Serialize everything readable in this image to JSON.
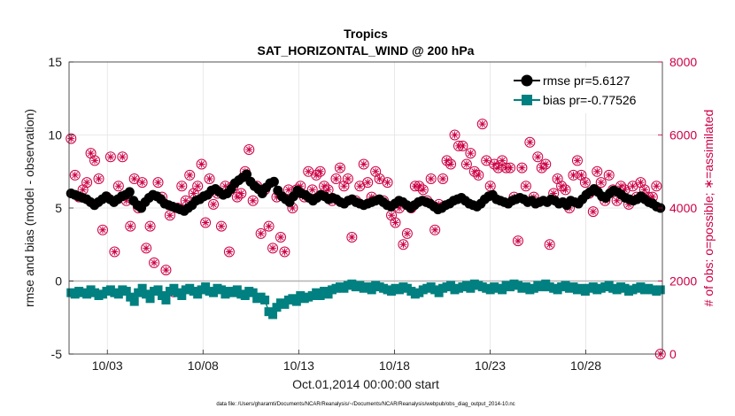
{
  "chart_data": {
    "type": "line",
    "title": "Tropics",
    "subtitle": "SAT_HORIZONTAL_WIND @ 200 hPa",
    "xlabel": "Oct.01,2014 00:00:00 start",
    "ylabel": "rmse and bias (model - observation)",
    "y2label": "# of obs: o=possible; ∗=assimilated",
    "footnote": "data file: /Users/gharamti/Documents/NCAR/Reanalysis/~/Documents/NCAR/Reanalysis/webpub/obs_diag_output_2014-10.nc",
    "xlim": [
      0.5,
      31.5
    ],
    "ylim": [
      -5,
      15
    ],
    "y2lim": [
      0,
      8000
    ],
    "xticks": [
      2.5,
      7.5,
      12.5,
      17.5,
      22.5,
      27.5
    ],
    "xticklabels": [
      "10/03",
      "10/08",
      "10/13",
      "10/18",
      "10/23",
      "10/28"
    ],
    "yticks": [
      -5,
      0,
      5,
      10,
      15
    ],
    "y2ticks": [
      0,
      2000,
      4000,
      6000,
      8000
    ],
    "legend_location": "top-right",
    "series": [
      {
        "name": "rmse pr=5.6127",
        "axis": "left",
        "color": "#000000",
        "marker": "circle",
        "values": [
          6.0,
          5.9,
          5.8,
          5.7,
          5.6,
          5.4,
          5.2,
          5.4,
          5.6,
          5.8,
          5.6,
          5.4,
          5.6,
          5.8,
          5.9,
          6.1,
          5.5,
          5.2,
          5.0,
          5.4,
          5.7,
          5.9,
          5.8,
          5.6,
          5.3,
          5.2,
          5.1,
          5.0,
          4.9,
          4.8,
          5.0,
          5.2,
          5.5,
          5.6,
          5.8,
          5.9,
          6.2,
          6.3,
          6.1,
          5.9,
          6.0,
          6.3,
          6.7,
          6.9,
          7.1,
          7.3,
          6.8,
          6.5,
          6.3,
          6.0,
          6.4,
          6.7,
          6.8,
          6.2,
          5.8,
          5.6,
          5.4,
          5.8,
          6.2,
          6.0,
          5.9,
          5.7,
          5.5,
          5.7,
          5.9,
          5.8,
          5.6,
          5.7,
          5.6,
          5.4,
          5.3,
          5.5,
          5.6,
          5.4,
          5.3,
          5.2,
          5.3,
          5.4,
          5.5,
          5.6,
          5.4,
          5.2,
          5.1,
          5.3,
          5.5,
          5.4,
          5.2,
          5.0,
          5.2,
          5.4,
          5.5,
          5.4,
          5.3,
          5.1,
          4.9,
          5.0,
          5.2,
          5.3,
          5.5,
          5.6,
          5.7,
          5.5,
          5.3,
          5.2,
          5.1,
          5.3,
          5.6,
          5.8,
          5.9,
          5.6,
          5.5,
          5.4,
          5.3,
          5.5,
          5.6,
          5.7,
          5.6,
          5.4,
          5.5,
          5.3,
          5.4,
          5.5,
          5.4,
          5.6,
          5.5,
          5.3,
          5.4,
          5.2,
          5.5,
          5.4,
          5.3,
          5.6,
          5.9,
          6.1,
          6.3,
          6.1,
          5.8,
          5.7,
          6.0,
          6.2,
          6.1,
          5.9,
          5.7,
          5.6,
          5.5,
          5.6,
          5.8,
          5.6,
          5.4,
          5.3,
          5.1,
          5.0
        ]
      },
      {
        "name": "bias pr=-0.77526",
        "axis": "left",
        "color": "#008080",
        "marker": "square",
        "values": [
          -0.8,
          -0.9,
          -0.7,
          -0.8,
          -0.9,
          -0.6,
          -0.8,
          -1.0,
          -0.9,
          -0.7,
          -0.6,
          -0.8,
          -0.9,
          -0.6,
          -0.7,
          -1.1,
          -1.4,
          -0.8,
          -0.5,
          -0.9,
          -1.2,
          -0.7,
          -0.6,
          -1.0,
          -1.3,
          -0.7,
          -0.5,
          -0.8,
          -1.0,
          -0.6,
          -0.5,
          -0.7,
          -0.9,
          -0.6,
          -0.4,
          -0.7,
          -0.8,
          -0.5,
          -0.6,
          -0.9,
          -0.7,
          -0.8,
          -0.6,
          -0.9,
          -1.0,
          -0.7,
          -0.8,
          -1.2,
          -1.1,
          -1.3,
          -2.1,
          -2.3,
          -1.8,
          -1.5,
          -1.6,
          -1.3,
          -1.2,
          -1.4,
          -1.0,
          -1.2,
          -1.1,
          -1.0,
          -0.8,
          -1.0,
          -0.7,
          -0.9,
          -0.6,
          -0.5,
          -0.4,
          -0.5,
          -0.3,
          -0.2,
          -0.4,
          -0.3,
          -0.5,
          -0.4,
          -0.6,
          -0.3,
          -0.4,
          -0.5,
          -0.6,
          -0.7,
          -0.5,
          -0.6,
          -0.4,
          -0.5,
          -0.7,
          -0.9,
          -0.8,
          -0.6,
          -0.5,
          -0.4,
          -0.6,
          -0.8,
          -0.5,
          -0.4,
          -0.3,
          -0.6,
          -0.5,
          -0.4,
          -0.3,
          -0.5,
          -0.2,
          -0.3,
          -0.4,
          -0.5,
          -0.6,
          -0.4,
          -0.5,
          -0.6,
          -0.3,
          -0.4,
          -0.2,
          -0.3,
          -0.5,
          -0.4,
          -0.6,
          -0.5,
          -0.3,
          -0.4,
          -0.2,
          -0.4,
          -0.5,
          -0.6,
          -0.4,
          -0.3,
          -0.5,
          -0.4,
          -0.6,
          -0.5,
          -0.7,
          -0.5,
          -0.4,
          -0.6,
          -0.5,
          -0.4,
          -0.3,
          -0.5,
          -0.6,
          -0.4,
          -0.5,
          -0.7,
          -0.6,
          -0.5,
          -0.4,
          -0.6,
          -0.5,
          -0.6,
          -0.7,
          -0.6
        ]
      },
      {
        "name": "# obs possible",
        "axis": "right",
        "color": "#cc0044",
        "marker": "circle-open",
        "values": [
          5900,
          4900,
          4300,
          4500,
          4700,
          5500,
          5300,
          4800,
          3400,
          4300,
          5400,
          2800,
          4600,
          5400,
          4200,
          3500,
          4800,
          4000,
          4700,
          2900,
          3500,
          2500,
          4700,
          4300,
          2300,
          3800,
          1700,
          4000,
          4600,
          4200,
          4900,
          4400,
          4600,
          5200,
          3600,
          4800,
          4100,
          4400,
          3500,
          4600,
          2800,
          4600,
          4300,
          4400,
          5000,
          5600,
          4200,
          4600,
          3300,
          4500,
          3500,
          2900,
          4300,
          3200,
          2800,
          4500,
          4000,
          4500,
          4600,
          4300,
          5000,
          4500,
          4900,
          5000,
          4600,
          4500,
          4200,
          4800,
          5100,
          4600,
          4800,
          3200,
          4200,
          4600,
          5200,
          4700,
          4300,
          5000,
          4800,
          4200,
          4700,
          3800,
          3600,
          4000,
          3000,
          3300,
          4000,
          4600,
          4600,
          4500,
          4200,
          4800,
          3400,
          4100,
          4800,
          5300,
          5200,
          6000,
          5700,
          5700,
          5200,
          5500,
          5000,
          4900,
          6300,
          5300,
          4600,
          5200,
          5100,
          5300,
          5100,
          5100,
          4300,
          3100,
          5100,
          4600,
          5800,
          4300,
          5400,
          5100,
          5200,
          3000,
          4400,
          4800,
          4600,
          4500,
          4000,
          4900,
          5300,
          4900,
          4700,
          4400,
          3900,
          5000,
          4700,
          4200,
          4900,
          4500,
          4200,
          4600,
          4500,
          4100,
          4600,
          4300,
          4700,
          4500,
          4300,
          4300,
          4600,
          0
        ]
      },
      {
        "name": "# obs assimilated",
        "axis": "right",
        "color": "#cc0044",
        "marker": "star",
        "values": [
          5900,
          4900,
          4300,
          4500,
          4700,
          5500,
          5300,
          4800,
          3400,
          4300,
          5400,
          2800,
          4600,
          5400,
          4200,
          3500,
          4800,
          4000,
          4700,
          2900,
          3500,
          2500,
          4700,
          4300,
          2300,
          3800,
          1700,
          4000,
          4600,
          4200,
          4900,
          4400,
          4600,
          5200,
          3600,
          4800,
          4100,
          4400,
          3500,
          4600,
          2800,
          4600,
          4300,
          4400,
          5000,
          5600,
          4200,
          4600,
          3300,
          4500,
          3500,
          2900,
          4300,
          3200,
          2800,
          4500,
          4000,
          4500,
          4600,
          4300,
          5000,
          4500,
          4900,
          5000,
          4600,
          4500,
          4200,
          4800,
          5100,
          4600,
          4800,
          3200,
          4200,
          4600,
          5200,
          4700,
          4300,
          5000,
          4800,
          4200,
          4700,
          3800,
          3600,
          4000,
          3000,
          3300,
          4000,
          4600,
          4600,
          4500,
          4200,
          4800,
          3400,
          4100,
          4800,
          5300,
          5200,
          6000,
          5700,
          5700,
          5200,
          5500,
          5000,
          4900,
          6300,
          5300,
          4600,
          5200,
          5100,
          5300,
          5100,
          5100,
          4300,
          3100,
          5100,
          4600,
          5800,
          4300,
          5400,
          5100,
          5200,
          3000,
          4400,
          4800,
          4600,
          4500,
          4000,
          4900,
          5300,
          4900,
          4700,
          4400,
          3900,
          5000,
          4700,
          4200,
          4900,
          4500,
          4200,
          4600,
          4500,
          4100,
          4600,
          4300,
          4700,
          4500,
          4300,
          4300,
          4600,
          0
        ]
      }
    ]
  }
}
